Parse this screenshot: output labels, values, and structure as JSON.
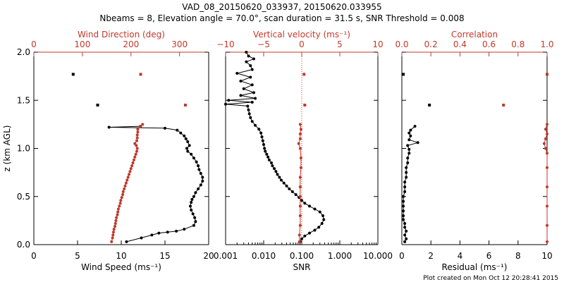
{
  "title_line1": "VAD_08_20150620_033937, 20150620.033955",
  "title_line2": "Nbeams = 8, Elevation angle = 70.0°, scan duration = 31.5 s, SNR Threshold = 0.008",
  "footer": "Plot created on Mon Oct 12 20:28:41 2015",
  "colors": {
    "primary": "#000000",
    "secondary": "#c0392b"
  },
  "chart_data": [
    {
      "type": "line",
      "panel": "wind",
      "ylabel": "z (km AGL)",
      "ylim": [
        0,
        2.0
      ],
      "yticks": [
        "0.0",
        "0.5",
        "1.0",
        "1.5",
        "2.0"
      ],
      "xlabel": "Wind Speed (ms⁻¹)",
      "xlim": [
        0,
        20
      ],
      "xticks": [
        "0",
        "5",
        "10",
        "15",
        "20"
      ],
      "top_xlabel": "Wind Direction (deg)",
      "top_xlim": [
        0,
        360
      ],
      "top_xticks": [
        "0",
        "100",
        "200",
        "300"
      ],
      "series": [
        {
          "name": "Wind Speed",
          "color": "black",
          "points": [
            [
              10.6,
              0.03
            ],
            [
              12.3,
              0.07
            ],
            [
              13.5,
              0.1
            ],
            [
              14.3,
              0.12
            ],
            [
              15.3,
              0.13
            ],
            [
              16.3,
              0.14
            ],
            [
              17.2,
              0.16
            ],
            [
              18.3,
              0.2
            ],
            [
              18.5,
              0.24
            ],
            [
              18.4,
              0.28
            ],
            [
              18.2,
              0.32
            ],
            [
              18.0,
              0.36
            ],
            [
              17.9,
              0.4
            ],
            [
              18.0,
              0.44
            ],
            [
              18.1,
              0.47
            ],
            [
              18.3,
              0.5
            ],
            [
              18.5,
              0.54
            ],
            [
              18.8,
              0.58
            ],
            [
              19.1,
              0.62
            ],
            [
              19.3,
              0.66
            ],
            [
              19.3,
              0.7
            ],
            [
              19.1,
              0.74
            ],
            [
              18.9,
              0.78
            ],
            [
              18.8,
              0.82
            ],
            [
              18.6,
              0.86
            ],
            [
              18.3,
              0.9
            ],
            [
              18.0,
              0.94
            ],
            [
              17.6,
              0.97
            ],
            [
              17.5,
              1.0
            ],
            [
              17.8,
              1.03
            ],
            [
              17.6,
              1.07
            ],
            [
              17.4,
              1.1
            ],
            [
              17.2,
              1.13
            ],
            [
              16.8,
              1.16
            ],
            [
              16.4,
              1.19
            ],
            [
              15.0,
              1.21
            ],
            [
              8.6,
              1.22
            ],
            [
              12.2,
              1.23
            ]
          ],
          "isolated": [
            [
              4.5,
              1.77
            ],
            [
              7.3,
              1.45
            ]
          ]
        },
        {
          "name": "Wind Direction",
          "color": "red",
          "axis": "top",
          "points": [
            [
              160,
              0.03
            ],
            [
              162,
              0.07
            ],
            [
              163,
              0.1
            ],
            [
              164,
              0.13
            ],
            [
              165,
              0.16
            ],
            [
              167,
              0.19
            ],
            [
              168,
              0.22
            ],
            [
              169,
              0.25
            ],
            [
              170,
              0.28
            ],
            [
              172,
              0.31
            ],
            [
              173,
              0.34
            ],
            [
              174,
              0.37
            ],
            [
              176,
              0.4
            ],
            [
              178,
              0.43
            ],
            [
              179,
              0.46
            ],
            [
              181,
              0.49
            ],
            [
              183,
              0.52
            ],
            [
              184,
              0.55
            ],
            [
              186,
              0.58
            ],
            [
              188,
              0.61
            ],
            [
              190,
              0.64
            ],
            [
              192,
              0.67
            ],
            [
              194,
              0.7
            ],
            [
              196,
              0.73
            ],
            [
              198,
              0.76
            ],
            [
              200,
              0.79
            ],
            [
              202,
              0.82
            ],
            [
              204,
              0.85
            ],
            [
              206,
              0.88
            ],
            [
              208,
              0.91
            ],
            [
              210,
              0.94
            ],
            [
              212,
              0.97
            ],
            [
              213,
              1.0
            ],
            [
              211,
              1.03
            ],
            [
              208,
              1.05
            ],
            [
              212,
              1.08
            ],
            [
              213,
              1.11
            ],
            [
              213,
              1.14
            ],
            [
              214,
              1.17
            ],
            [
              214,
              1.2
            ],
            [
              219,
              1.23
            ],
            [
              224,
              1.25
            ]
          ],
          "isolated": [
            [
              220,
              1.77
            ],
            [
              312,
              1.45
            ]
          ]
        }
      ]
    },
    {
      "type": "line",
      "panel": "vertical",
      "xlabel": "SNR",
      "xscale": "log",
      "xlim": [
        0.001,
        10
      ],
      "xticks": [
        "0.001",
        "0.010",
        "0.100",
        "1.000",
        "10.000"
      ],
      "top_xlabel": "Vertical velocity (ms⁻¹)",
      "top_xlim": [
        -10,
        10
      ],
      "top_xticks": [
        "−10",
        "−5",
        "0",
        "5",
        "10"
      ],
      "series": [
        {
          "name": "SNR",
          "color": "black",
          "points": [
            [
              0.09,
              0.03
            ],
            [
              0.1,
              0.06
            ],
            [
              0.12,
              0.09
            ],
            [
              0.16,
              0.12
            ],
            [
              0.22,
              0.15
            ],
            [
              0.28,
              0.18
            ],
            [
              0.34,
              0.22
            ],
            [
              0.38,
              0.26
            ],
            [
              0.36,
              0.3
            ],
            [
              0.3,
              0.34
            ],
            [
              0.22,
              0.37
            ],
            [
              0.16,
              0.4
            ],
            [
              0.12,
              0.43
            ],
            [
              0.1,
              0.46
            ],
            [
              0.085,
              0.49
            ],
            [
              0.07,
              0.52
            ],
            [
              0.057,
              0.55
            ],
            [
              0.047,
              0.58
            ],
            [
              0.04,
              0.61
            ],
            [
              0.034,
              0.64
            ],
            [
              0.029,
              0.67
            ],
            [
              0.026,
              0.7
            ],
            [
              0.023,
              0.73
            ],
            [
              0.021,
              0.76
            ],
            [
              0.019,
              0.79
            ],
            [
              0.017,
              0.82
            ],
            [
              0.016,
              0.85
            ],
            [
              0.014,
              0.88
            ],
            [
              0.013,
              0.91
            ],
            [
              0.012,
              0.94
            ],
            [
              0.011,
              0.97
            ],
            [
              0.0105,
              1.0
            ],
            [
              0.01,
              1.04
            ],
            [
              0.0095,
              1.08
            ],
            [
              0.009,
              1.12
            ],
            [
              0.0085,
              1.16
            ],
            [
              0.0075,
              1.2
            ],
            [
              0.006,
              1.24
            ],
            [
              0.005,
              1.28
            ],
            [
              0.0045,
              1.32
            ],
            [
              0.0042,
              1.36
            ],
            [
              0.004,
              1.4
            ],
            [
              0.0038,
              1.44
            ],
            [
              0.001,
              1.46
            ],
            [
              0.005,
              1.48
            ],
            [
              0.0012,
              1.5
            ],
            [
              0.006,
              1.52
            ],
            [
              0.0025,
              1.55
            ],
            [
              0.0055,
              1.58
            ],
            [
              0.003,
              1.62
            ],
            [
              0.005,
              1.66
            ],
            [
              0.0025,
              1.7
            ],
            [
              0.0045,
              1.74
            ],
            [
              0.002,
              1.78
            ],
            [
              0.005,
              1.82
            ],
            [
              0.0045,
              1.86
            ],
            [
              0.0035,
              1.9
            ],
            [
              0.0055,
              1.93
            ],
            [
              0.004,
              1.96
            ],
            [
              0.0035,
              2.0
            ]
          ]
        },
        {
          "name": "Vertical velocity",
          "color": "red",
          "axis": "top",
          "points": [
            [
              -0.3,
              0.03
            ],
            [
              -0.3,
              0.1
            ],
            [
              -0.2,
              0.2
            ],
            [
              -0.2,
              0.3
            ],
            [
              -0.2,
              0.4
            ],
            [
              -0.2,
              0.5
            ],
            [
              -0.2,
              0.6
            ],
            [
              -0.2,
              0.7
            ],
            [
              -0.1,
              0.8
            ],
            [
              -0.1,
              0.9
            ],
            [
              -0.2,
              1.0
            ],
            [
              -0.4,
              1.05
            ],
            [
              -0.2,
              1.1
            ],
            [
              -0.2,
              1.15
            ],
            [
              -0.1,
              1.2
            ],
            [
              -0.2,
              1.25
            ]
          ],
          "isolated": [
            [
              0.3,
              1.77
            ],
            [
              0.4,
              1.45
            ]
          ]
        }
      ]
    },
    {
      "type": "line",
      "panel": "residual",
      "xlabel": "Residual  (ms⁻¹)",
      "xlim": [
        0,
        10
      ],
      "xticks": [
        "0",
        "2",
        "4",
        "6",
        "8",
        "10"
      ],
      "top_xlabel": "Correlation",
      "top_xlim": [
        0,
        1.0
      ],
      "top_xticks": [
        "0.0",
        "0.2",
        "0.4",
        "0.6",
        "0.8",
        "1.0"
      ],
      "series": [
        {
          "name": "Residual",
          "color": "black",
          "points": [
            [
              0.2,
              0.03
            ],
            [
              0.3,
              0.06
            ],
            [
              0.2,
              0.1
            ],
            [
              0.3,
              0.14
            ],
            [
              0.2,
              0.18
            ],
            [
              0.2,
              0.22
            ],
            [
              0.1,
              0.26
            ],
            [
              0.1,
              0.3
            ],
            [
              0.1,
              0.35
            ],
            [
              0.1,
              0.4
            ],
            [
              0.1,
              0.45
            ],
            [
              0.1,
              0.5
            ],
            [
              0.2,
              0.55
            ],
            [
              0.2,
              0.6
            ],
            [
              0.2,
              0.65
            ],
            [
              0.3,
              0.7
            ],
            [
              0.3,
              0.75
            ],
            [
              0.3,
              0.8
            ],
            [
              0.4,
              0.85
            ],
            [
              0.4,
              0.9
            ],
            [
              0.5,
              0.95
            ],
            [
              0.5,
              0.99
            ],
            [
              0.4,
              1.03
            ],
            [
              1.1,
              1.06
            ],
            [
              0.5,
              1.09
            ],
            [
              0.6,
              1.13
            ],
            [
              0.5,
              1.16
            ],
            [
              0.6,
              1.19
            ],
            [
              0.9,
              1.23
            ]
          ],
          "isolated": [
            [
              0.1,
              1.77
            ],
            [
              1.9,
              1.45
            ]
          ]
        },
        {
          "name": "Correlation",
          "color": "red",
          "axis": "top",
          "points": [
            [
              1.0,
              0.03
            ],
            [
              1.0,
              0.2
            ],
            [
              1.0,
              0.4
            ],
            [
              1.0,
              0.6
            ],
            [
              1.0,
              0.8
            ],
            [
              1.0,
              0.95
            ],
            [
              0.99,
              1.0
            ],
            [
              0.98,
              1.05
            ],
            [
              0.99,
              1.1
            ],
            [
              1.0,
              1.15
            ],
            [
              0.99,
              1.2
            ],
            [
              1.0,
              1.25
            ]
          ],
          "isolated": [
            [
              1.0,
              1.77
            ],
            [
              0.7,
              1.45
            ]
          ]
        }
      ]
    }
  ]
}
